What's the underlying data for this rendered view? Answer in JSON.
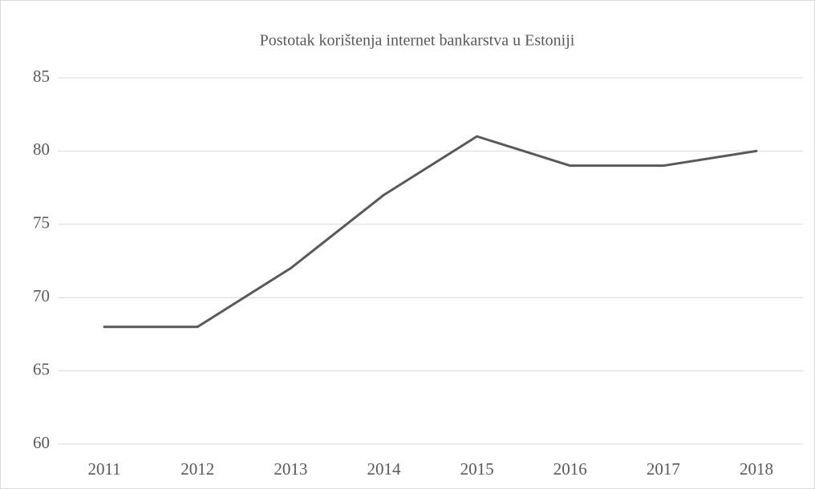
{
  "chart_data": {
    "type": "line",
    "title": "Postotak korištenja internet bankarstva u Estoniji",
    "categories": [
      "2011",
      "2012",
      "2013",
      "2014",
      "2015",
      "2016",
      "2017",
      "2018"
    ],
    "series": [
      {
        "name": "Postotak",
        "color": "#595959",
        "values": [
          68,
          68,
          72,
          77,
          81,
          79,
          79,
          80
        ]
      }
    ],
    "ylim": [
      60,
      85
    ],
    "yticks": [
      60,
      65,
      70,
      75,
      80,
      85
    ],
    "grid": true
  }
}
